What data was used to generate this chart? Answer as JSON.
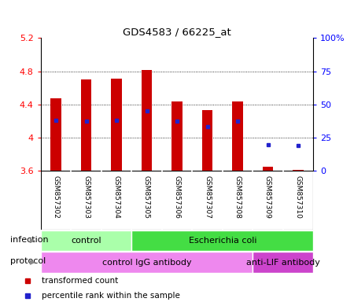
{
  "title": "GDS4583 / 66225_at",
  "samples": [
    "GSM857302",
    "GSM857303",
    "GSM857304",
    "GSM857305",
    "GSM857306",
    "GSM857307",
    "GSM857308",
    "GSM857309",
    "GSM857310"
  ],
  "bar_tops": [
    4.47,
    4.7,
    4.71,
    4.82,
    4.44,
    4.33,
    4.44,
    3.65,
    3.61
  ],
  "bar_bottoms": [
    3.6,
    3.6,
    3.6,
    3.6,
    3.6,
    3.6,
    3.6,
    3.6,
    3.6
  ],
  "blue_dot_y": [
    4.21,
    4.2,
    4.21,
    4.32,
    4.2,
    4.13,
    4.2,
    3.92,
    3.91
  ],
  "ylim_left": [
    3.6,
    5.2
  ],
  "ylim_right": [
    0,
    100
  ],
  "yticks_left": [
    3.6,
    4.0,
    4.4,
    4.8,
    5.2
  ],
  "ytick_left_labels": [
    "3.6",
    "4",
    "4.4",
    "4.8",
    "5.2"
  ],
  "yticks_right": [
    0,
    25,
    50,
    75,
    100
  ],
  "ytick_right_labels": [
    "0",
    "25",
    "50",
    "75",
    "100%"
  ],
  "bar_color": "#cc0000",
  "dot_color": "#2222cc",
  "infection_groups": [
    {
      "label": "control",
      "start": 0,
      "end": 3,
      "color": "#aaffaa"
    },
    {
      "label": "Escherichia coli",
      "start": 3,
      "end": 9,
      "color": "#44dd44"
    }
  ],
  "protocol_groups": [
    {
      "label": "control IgG antibody",
      "start": 0,
      "end": 7,
      "color": "#ee88ee"
    },
    {
      "label": "anti-LIF antibody",
      "start": 7,
      "end": 9,
      "color": "#cc44cc"
    }
  ],
  "legend_items": [
    {
      "label": "transformed count",
      "color": "#cc0000"
    },
    {
      "label": "percentile rank within the sample",
      "color": "#2222cc"
    }
  ],
  "sample_bg_color": "#cccccc",
  "plot_bg_color": "#ffffff",
  "grid_yticks": [
    4.0,
    4.4,
    4.8
  ],
  "bar_width": 0.35
}
